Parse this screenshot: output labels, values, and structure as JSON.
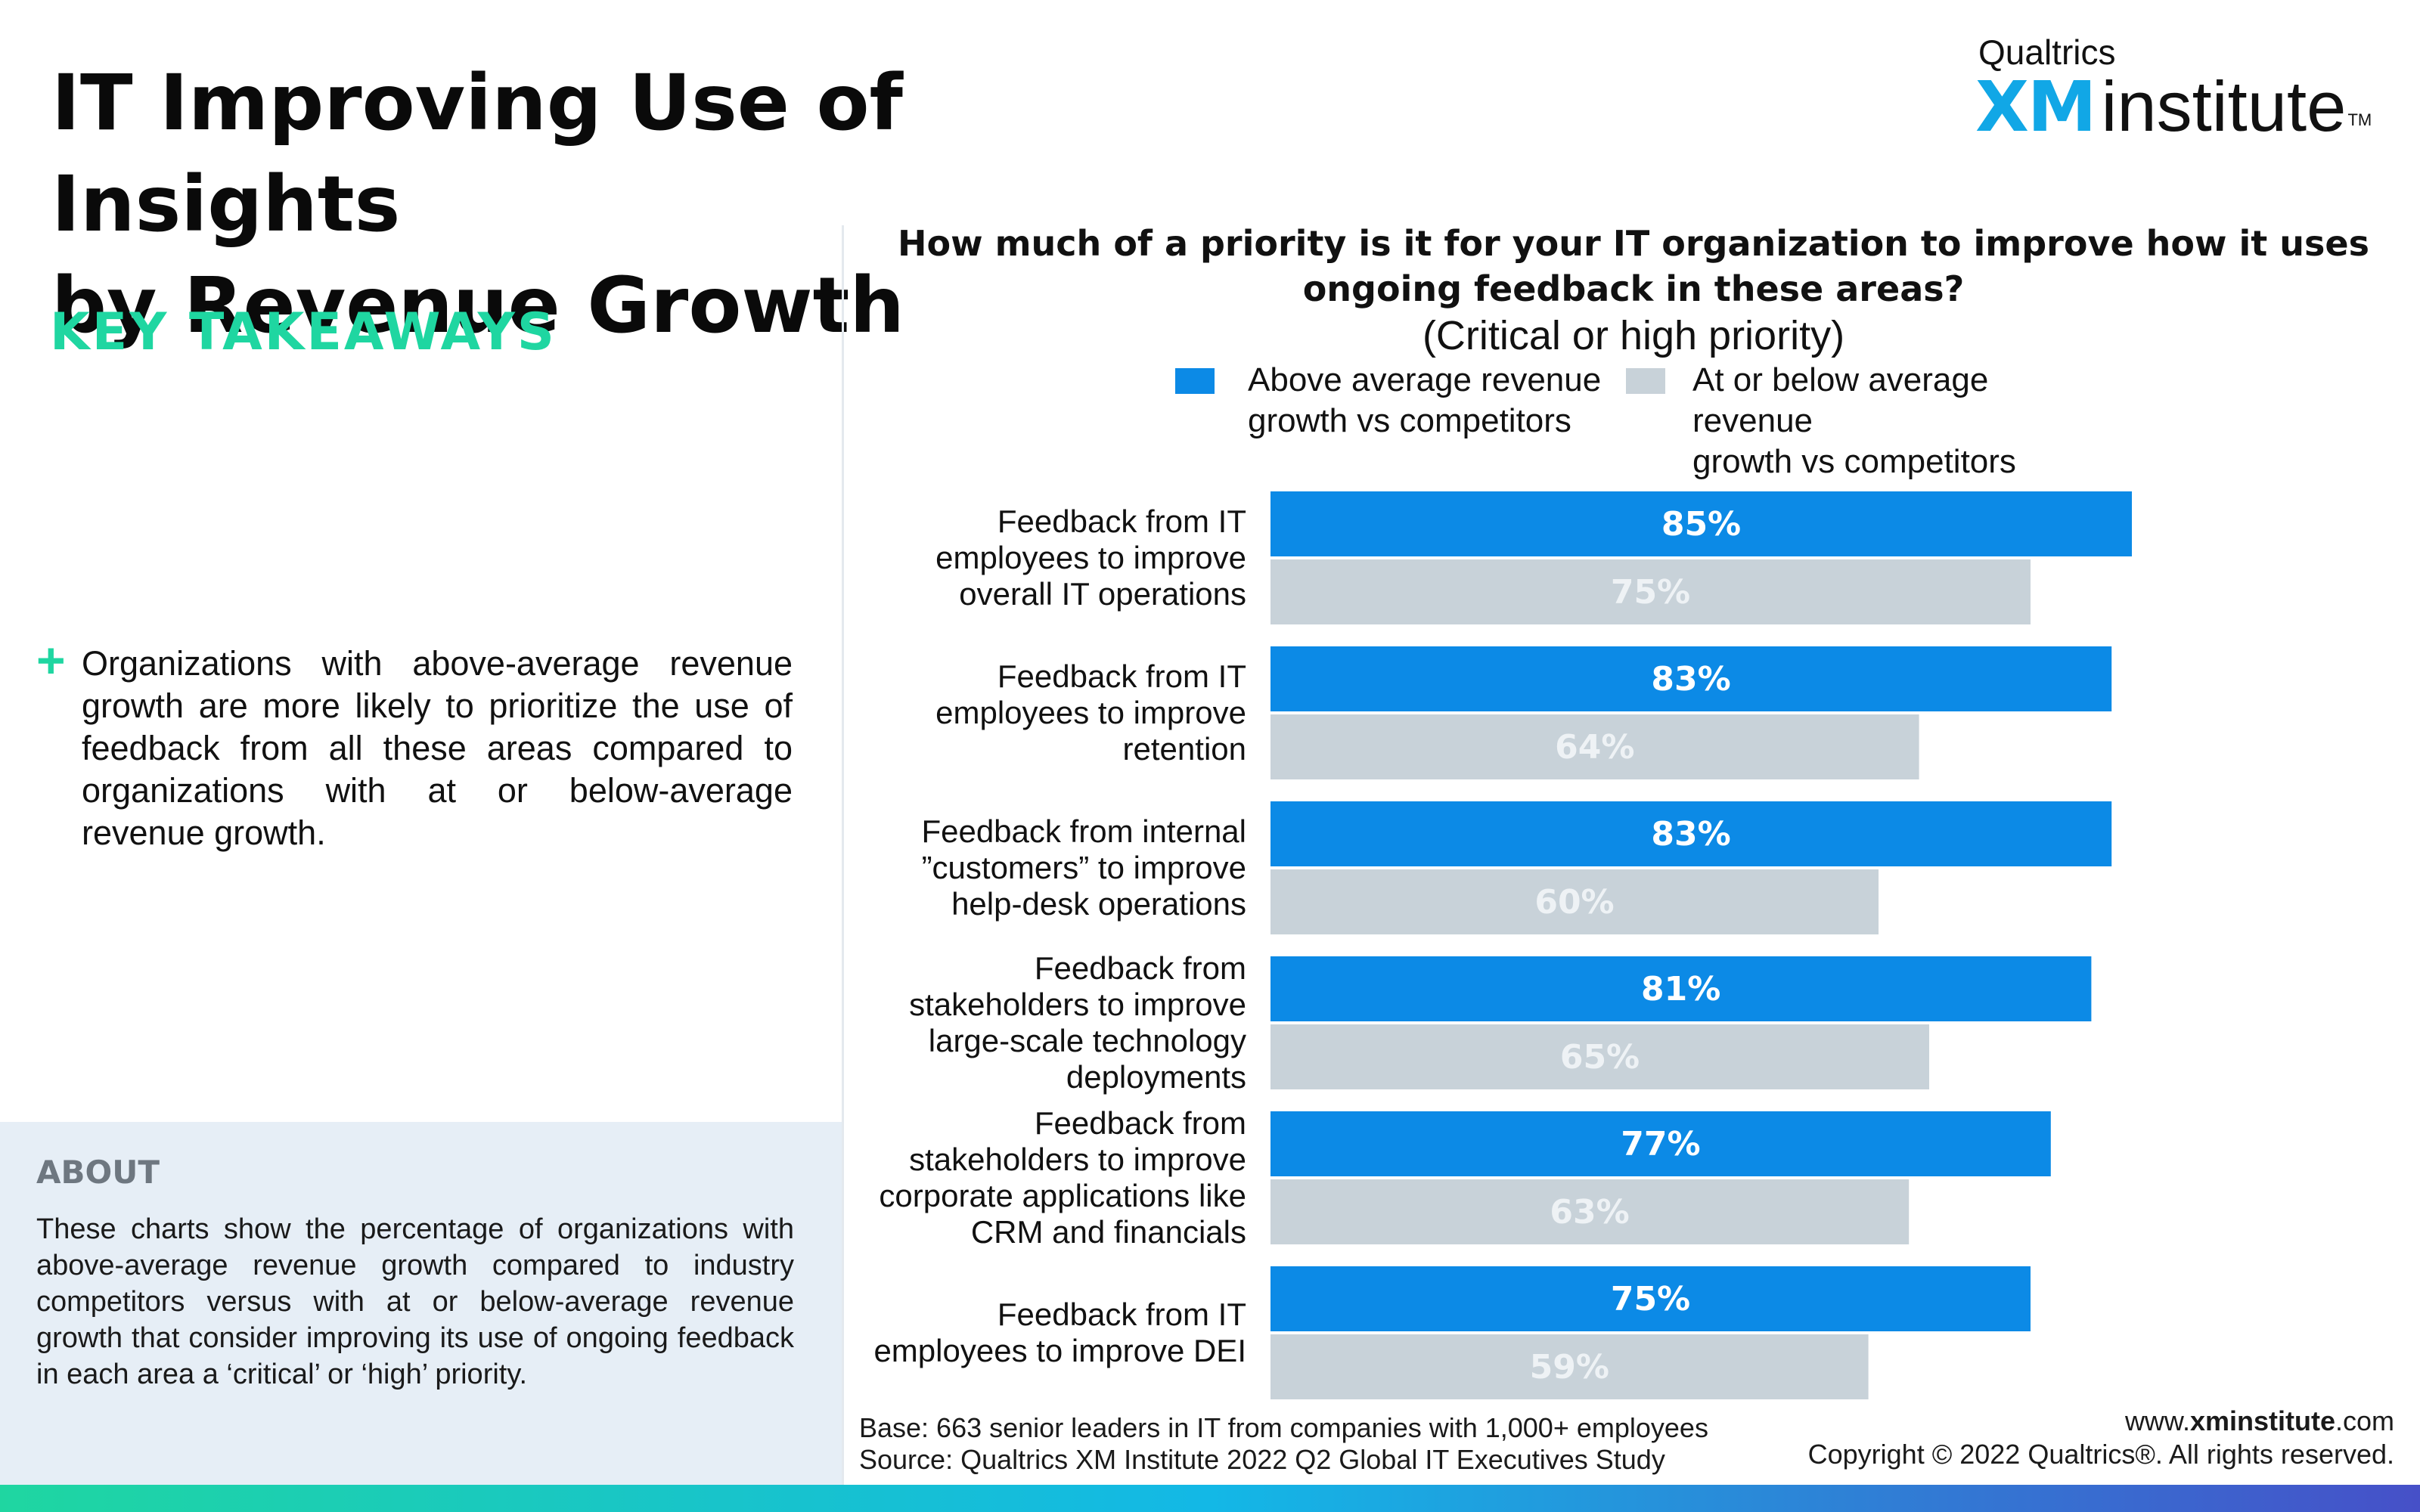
{
  "header": {
    "title_line1": "IT Improving Use of Insights",
    "title_line2": "by Revenue Growth"
  },
  "logo": {
    "top": "Qualtrics",
    "xm": "XM",
    "institute": "institute",
    "tm": "TM"
  },
  "sidebar": {
    "takeaways_heading": "KEY TAKEAWAYS",
    "bullet_symbol": "+",
    "bullet_text": "Organizations with above-average revenue growth are more likely to prioritize the use of feedback from all these areas compared to organizations with at or below-average revenue growth.",
    "about_heading": "ABOUT",
    "about_text": "These charts show the percentage of organizations with above-average revenue growth compared to industry competitors versus with at or below-average revenue growth that consider improving its use of ongoing feedback in each area a ‘critical’ or ‘high’ priority."
  },
  "chart_data": {
    "type": "bar",
    "orientation": "horizontal",
    "title": "How much of a priority is it for your IT organization to improve how it uses ongoing feedback in these areas?",
    "subtitle": "(Critical or high priority)",
    "categories": [
      [
        "Feedback from IT",
        "employees to improve",
        "overall IT operations"
      ],
      [
        "Feedback from IT",
        "employees to improve",
        "retention"
      ],
      [
        "Feedback from internal",
        "”customers” to improve",
        "help-desk operations"
      ],
      [
        "Feedback from",
        "stakeholders to improve",
        "large-scale technology",
        "deployments"
      ],
      [
        "Feedback from",
        "stakeholders to improve",
        "corporate applications like",
        "CRM and financials"
      ],
      [
        "Feedback from IT",
        "employees to improve DEI"
      ]
    ],
    "series": [
      {
        "name_lines": [
          "Above average revenue",
          "growth vs competitors"
        ],
        "color": "#0c8ae6",
        "label_color": "#ffffff",
        "values": [
          85,
          83,
          83,
          81,
          77,
          75
        ],
        "labels": [
          "85%",
          "83%",
          "83%",
          "81%",
          "77%",
          "75%"
        ]
      },
      {
        "name_lines": [
          "At or below average revenue",
          "growth vs competitors"
        ],
        "color": "#c8d2d9",
        "label_color": "#eef2f5",
        "values": [
          75,
          64,
          60,
          65,
          63,
          59
        ],
        "labels": [
          "75%",
          "64%",
          "60%",
          "65%",
          "63%",
          "59%"
        ]
      }
    ],
    "xlim": [
      0,
      100
    ],
    "grid": false,
    "legend_position": "top"
  },
  "footer": {
    "base": "Base: 663 senior leaders in IT from companies with 1,000+ employees",
    "source": "Source: Qualtrics XM Institute 2022 Q2 Global IT Executives Study",
    "url_prefix": "www.",
    "url_bold": "xminstitute",
    "url_suffix": ".com",
    "copyright": "Copyright © 2022 Qualtrics®. All rights reserved."
  }
}
